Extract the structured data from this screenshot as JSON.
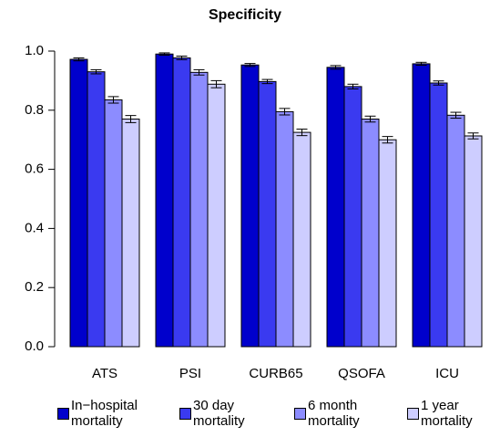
{
  "chart_data": {
    "type": "bar",
    "title": "Specificity",
    "categories": [
      "ATS",
      "PSI",
      "CURB65",
      "QSOFA",
      "ICU"
    ],
    "series": [
      {
        "name": "In−hospital mortality",
        "color": "#0000cc",
        "values": [
          0.972,
          0.99,
          0.953,
          0.945,
          0.957
        ],
        "errors": [
          0.005,
          0.004,
          0.005,
          0.006,
          0.005
        ]
      },
      {
        "name": "30 day mortality",
        "color": "#3a3af0",
        "values": [
          0.93,
          0.977,
          0.897,
          0.88,
          0.892
        ],
        "errors": [
          0.007,
          0.006,
          0.007,
          0.008,
          0.007
        ]
      },
      {
        "name": "6 month mortality",
        "color": "#8c8cff",
        "values": [
          0.835,
          0.928,
          0.795,
          0.77,
          0.783
        ],
        "errors": [
          0.011,
          0.009,
          0.011,
          0.01,
          0.01
        ]
      },
      {
        "name": "1 year mortality",
        "color": "#cdcdff",
        "values": [
          0.77,
          0.888,
          0.725,
          0.7,
          0.713
        ],
        "errors": [
          0.012,
          0.012,
          0.011,
          0.011,
          0.01
        ]
      }
    ],
    "ylim": [
      0,
      1.0
    ],
    "yticks": [
      {
        "value": 0,
        "label": "0.0"
      },
      0.2,
      0.4,
      0.6,
      0.8,
      {
        "value": 1,
        "label": "1.0"
      }
    ],
    "legend": "bottom"
  }
}
